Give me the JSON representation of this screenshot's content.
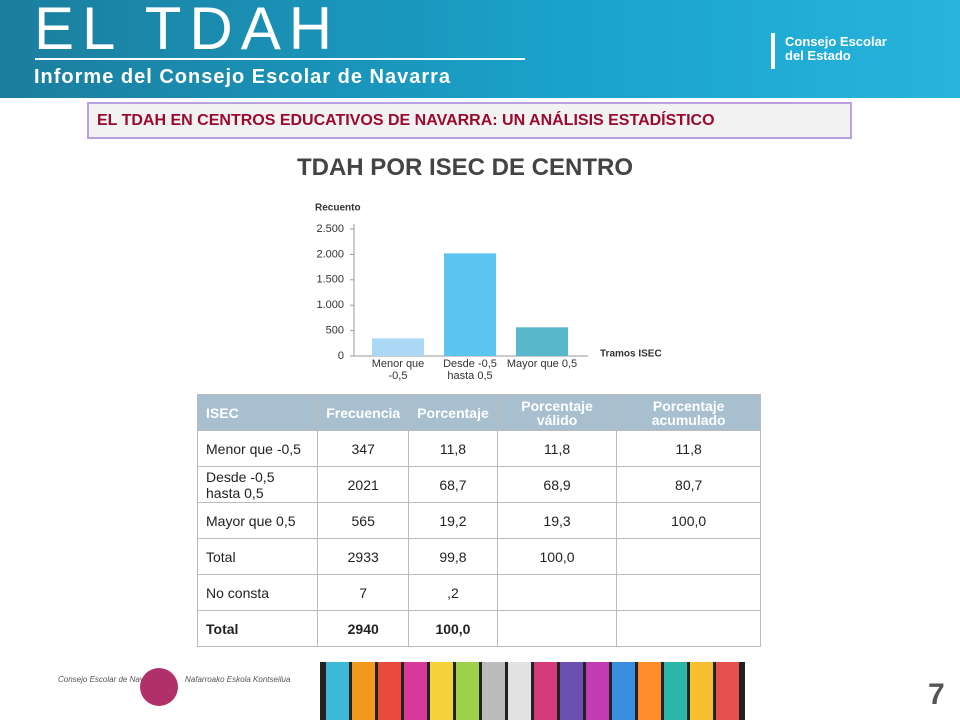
{
  "header": {
    "title": "EL TDAH",
    "subtitle": "Informe del Consejo Escolar de Navarra",
    "org": [
      "Consejo Escolar",
      "del Estado"
    ]
  },
  "banner": "EL TDAH EN CENTROS EDUCATIVOS DE NAVARRA: UN ANÁLISIS ESTADÍSTICO",
  "heading": "TDAH POR ISEC DE CENTRO",
  "chart_data": {
    "type": "bar",
    "y_label": "Recuento",
    "x_label": "Tramos ISEC",
    "categories": [
      "Menor que -0,5",
      "Desde -0,5 hasta 0,5",
      "Mayor que 0,5"
    ],
    "values": [
      347,
      2021,
      565
    ],
    "colors": [
      "#aad8f5",
      "#5bc4f0",
      "#5ab8cc"
    ],
    "ylim": [
      0,
      2500
    ],
    "yticks": [
      0,
      500,
      {
        "value": 1000,
        "label": "1.000"
      },
      {
        "value": 1500,
        "label": "1.500"
      },
      {
        "value": 2000,
        "label": "2.000"
      },
      {
        "value": 2500,
        "label": "2.500"
      }
    ],
    "grid": false
  },
  "table": {
    "columns": [
      "ISEC",
      "Frecuencia",
      "Porcentaje",
      "Porcentaje válido",
      "Porcentaje acumulado"
    ],
    "rows": [
      [
        "Menor que -0,5",
        "347",
        "11,8",
        "11,8",
        "11,8"
      ],
      [
        "Desde -0,5 hasta 0,5",
        "2021",
        "68,7",
        "68,9",
        "80,7"
      ],
      [
        "Mayor que 0,5",
        "565",
        "19,2",
        "19,3",
        "100,0"
      ],
      [
        "Total",
        "2933",
        "99,8",
        "100,0",
        ""
      ],
      [
        "No consta",
        "7",
        ",2",
        "",
        ""
      ],
      [
        "Total",
        "2940",
        "100,0",
        "",
        ""
      ]
    ]
  },
  "footer": {
    "logo_texts": [
      "Consejo Escolar de Navarra",
      "Nafarroako Eskola Kontseilua"
    ],
    "page_number": "7"
  }
}
